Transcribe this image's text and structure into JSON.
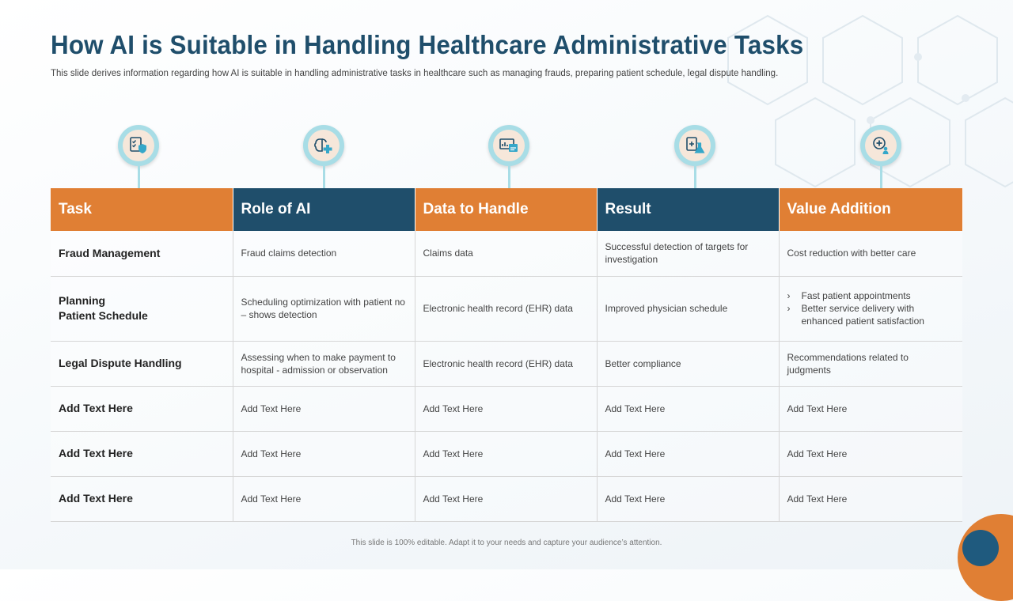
{
  "slide": {
    "title": "How AI is Suitable in Handling Healthcare Administrative Tasks",
    "subtitle": "This slide derives information regarding how AI is suitable in handling administrative tasks in healthcare such as managing frauds, preparing patient schedule, legal dispute handling.",
    "footer": "This slide is 100% editable. Adapt it to your needs and capture your audience’s attention."
  },
  "colors": {
    "accent_orange": "#e07f34",
    "accent_blue": "#1f4e6b",
    "icon_ring": "#a8dde6",
    "icon_fill": "#f6e7da"
  },
  "icons": [
    "checklist-shield-icon",
    "brain-medical-icon",
    "computer-chart-icon",
    "medical-flask-icon",
    "health-people-icon"
  ],
  "table": {
    "headers": [
      "Task",
      "Role of AI",
      "Data to Handle",
      "Result",
      "Value Addition"
    ],
    "rows": [
      {
        "task": "Fraud Management",
        "role": "Fraud claims detection",
        "data": "Claims data",
        "result": "Successful detection of targets for investigation",
        "value": "Cost reduction with better care"
      },
      {
        "task_lines": [
          "Planning",
          "Patient Schedule"
        ],
        "role": "Scheduling optimization with patient no – shows detection",
        "data": "Electronic health record (EHR) data",
        "result": "Improved physician schedule",
        "value_bullets": [
          "Fast patient appointments",
          "Better service delivery with enhanced patient satisfaction"
        ]
      },
      {
        "task": "Legal Dispute Handling",
        "role": "Assessing when to make payment to hospital - admission or observation",
        "data": "Electronic health record (EHR) data",
        "result": "Better compliance",
        "value": "Recommendations related to judgments"
      },
      {
        "task": "Add Text Here",
        "role": "Add Text Here",
        "data": "Add Text Here",
        "result": "Add Text Here",
        "value": "Add Text Here"
      },
      {
        "task": "Add Text Here",
        "role": "Add Text Here",
        "data": "Add Text Here",
        "result": "Add Text Here",
        "value": "Add Text Here"
      },
      {
        "task": "Add Text Here",
        "role": "Add Text Here",
        "data": "Add Text Here",
        "result": "Add Text Here",
        "value": "Add Text Here"
      }
    ]
  },
  "bullet_marker": "›"
}
